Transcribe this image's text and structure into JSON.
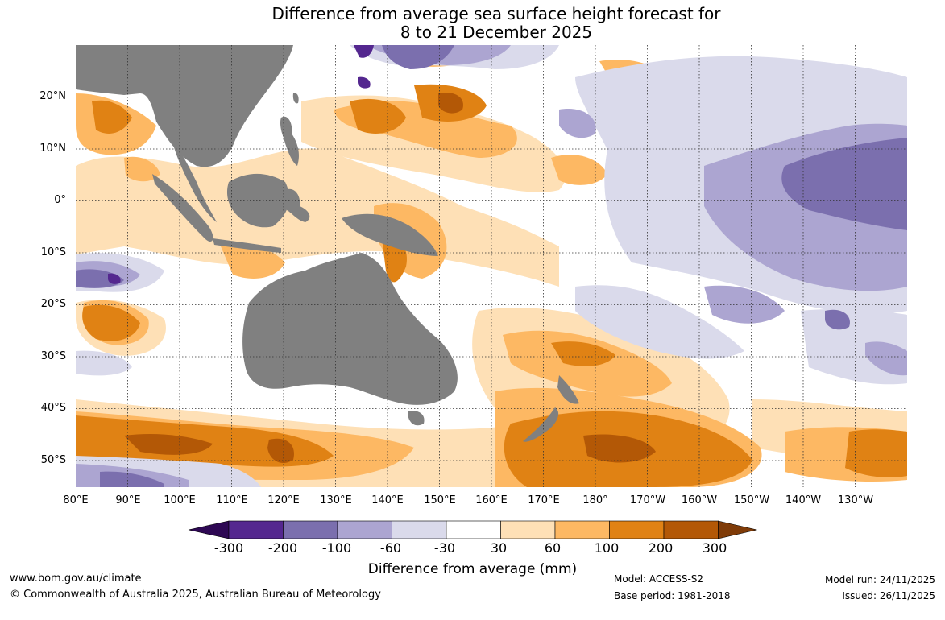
{
  "title_line1": "Difference from average sea surface height forecast for",
  "title_line2": "8 to 21 December 2025",
  "lat_labels": [
    "20°N",
    "10°N",
    "0°",
    "10°S",
    "20°S",
    "30°S",
    "40°S",
    "50°S"
  ],
  "lon_labels": [
    "80°E",
    "90°E",
    "100°E",
    "110°E",
    "120°E",
    "130°E",
    "140°E",
    "150°E",
    "160°E",
    "170°E",
    "180°",
    "170°W",
    "160°W",
    "150°W",
    "140°W",
    "130°W"
  ],
  "colorbar": {
    "labels": [
      "-300",
      "-200",
      "-100",
      "-60",
      "-30",
      "30",
      "60",
      "100",
      "200",
      "300"
    ],
    "colors": [
      "#2e0854",
      "#54278f",
      "#7b6fae",
      "#aca5d1",
      "#dadaeb",
      "#ffffff",
      "#fee0b6",
      "#fdb863",
      "#e08214",
      "#b35806",
      "#7f3b08"
    ],
    "title": "Difference from average (mm)"
  },
  "land_color": "#808080",
  "footer": {
    "url": "www.bom.gov.au/climate",
    "copyright": "© Commonwealth of Australia 2025, Australian Bureau of Meteorology",
    "model": "Model: ACCESS-S2",
    "base_period": "Base period: 1981-2018",
    "model_run": "Model run: 24/11/2025",
    "issued": "Issued: 26/11/2025"
  }
}
